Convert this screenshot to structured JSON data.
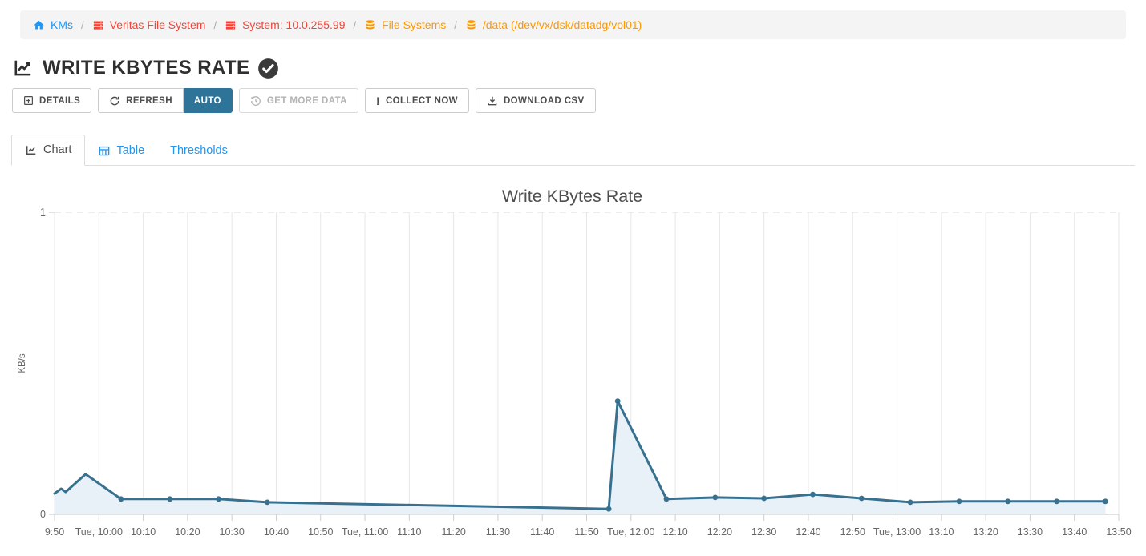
{
  "breadcrumb": {
    "separator": "/",
    "items": [
      {
        "label": "KMs",
        "icon": "home",
        "color": "blue"
      },
      {
        "label": "Veritas File System",
        "icon": "server",
        "color": "red"
      },
      {
        "label": "System: 10.0.255.99",
        "icon": "server",
        "color": "red"
      },
      {
        "label": "File Systems",
        "icon": "database",
        "color": "orange"
      },
      {
        "label": "/data (/dev/vx/dsk/datadg/vol01)",
        "icon": "database",
        "color": "orange"
      }
    ]
  },
  "page": {
    "title": "WRITE KBYTES RATE"
  },
  "toolbar": {
    "details": "DETAILS",
    "refresh": "REFRESH",
    "auto": "AUTO",
    "get_more_data": "GET MORE DATA",
    "collect_now": "COLLECT NOW",
    "collect_now_icon": "!",
    "download_csv": "DOWNLOAD CSV"
  },
  "tabs": [
    {
      "label": "Chart",
      "active": true
    },
    {
      "label": "Table",
      "active": false
    },
    {
      "label": "Thresholds",
      "active": false
    }
  ],
  "colors": {
    "accent-blue": "#2196f3",
    "bc-red": "#f44336",
    "bc-orange": "#ff9800",
    "auto-bg": "#2e7499",
    "series-line": "#38718f",
    "series-fill": "#e9f1f8",
    "check-circle": "#3a3a3a"
  },
  "chart_data": {
    "type": "area",
    "title": "Write KBytes Rate",
    "xlabel": "",
    "ylabel": "KB/s",
    "ylim": [
      0,
      1
    ],
    "y_ticks": [
      0,
      1
    ],
    "grid": "vertical",
    "legend": "none",
    "x_ticks": [
      {
        "m": 0,
        "label": "9:50"
      },
      {
        "m": 10,
        "label": "Tue, 10:00"
      },
      {
        "m": 20,
        "label": "10:10"
      },
      {
        "m": 30,
        "label": "10:20"
      },
      {
        "m": 40,
        "label": "10:30"
      },
      {
        "m": 50,
        "label": "10:40"
      },
      {
        "m": 60,
        "label": "10:50"
      },
      {
        "m": 70,
        "label": "Tue, 11:00"
      },
      {
        "m": 80,
        "label": "11:10"
      },
      {
        "m": 90,
        "label": "11:20"
      },
      {
        "m": 100,
        "label": "11:30"
      },
      {
        "m": 110,
        "label": "11:40"
      },
      {
        "m": 120,
        "label": "11:50"
      },
      {
        "m": 130,
        "label": "Tue, 12:00"
      },
      {
        "m": 140,
        "label": "12:10"
      },
      {
        "m": 150,
        "label": "12:20"
      },
      {
        "m": 160,
        "label": "12:30"
      },
      {
        "m": 170,
        "label": "12:40"
      },
      {
        "m": 180,
        "label": "12:50"
      },
      {
        "m": 190,
        "label": "Tue, 13:00"
      },
      {
        "m": 200,
        "label": "13:10"
      },
      {
        "m": 210,
        "label": "13:20"
      },
      {
        "m": 220,
        "label": "13:30"
      },
      {
        "m": 230,
        "label": "13:40"
      },
      {
        "m": 240,
        "label": "13:50"
      }
    ],
    "series": [
      {
        "name": "Write KBytes Rate",
        "unit": "KB/s",
        "points": [
          {
            "t": 0,
            "v": 0.069,
            "marker": false
          },
          {
            "t": 1.5,
            "v": 0.085,
            "marker": false
          },
          {
            "t": 2.5,
            "v": 0.074,
            "marker": false
          },
          {
            "t": 7,
            "v": 0.133,
            "marker": false
          },
          {
            "t": 15,
            "v": 0.051,
            "marker": true
          },
          {
            "t": 26,
            "v": 0.051,
            "marker": true
          },
          {
            "t": 37,
            "v": 0.051,
            "marker": true
          },
          {
            "t": 48,
            "v": 0.04,
            "marker": true
          },
          {
            "t": 125,
            "v": 0.018,
            "marker": true
          },
          {
            "t": 127,
            "v": 0.375,
            "marker": true
          },
          {
            "t": 138,
            "v": 0.051,
            "marker": true
          },
          {
            "t": 149,
            "v": 0.056,
            "marker": true
          },
          {
            "t": 160,
            "v": 0.053,
            "marker": true
          },
          {
            "t": 171,
            "v": 0.066,
            "marker": true
          },
          {
            "t": 182,
            "v": 0.053,
            "marker": true
          },
          {
            "t": 193,
            "v": 0.04,
            "marker": true
          },
          {
            "t": 204,
            "v": 0.043,
            "marker": true
          },
          {
            "t": 215,
            "v": 0.043,
            "marker": true
          },
          {
            "t": 226,
            "v": 0.043,
            "marker": true
          },
          {
            "t": 237,
            "v": 0.043,
            "marker": true
          }
        ]
      }
    ]
  }
}
